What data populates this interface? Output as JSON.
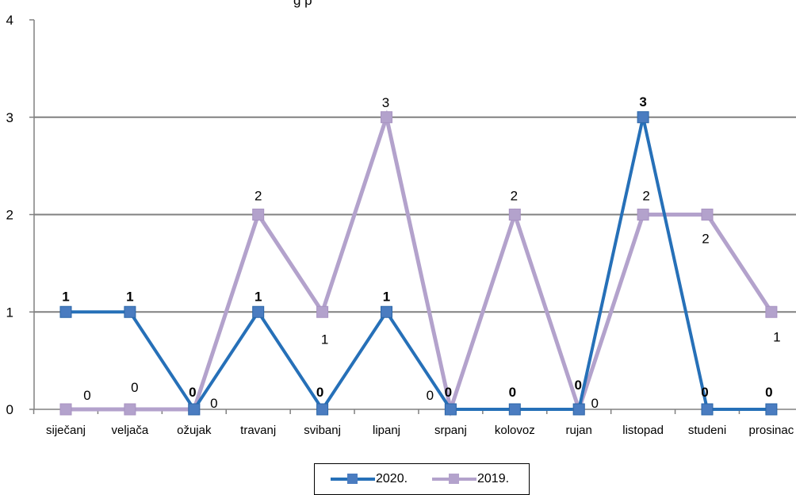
{
  "chart_data": {
    "type": "line",
    "title": "",
    "title_fragment": "g       p",
    "categories": [
      "siječanj",
      "veljača",
      "ožujak",
      "travanj",
      "svibanj",
      "lipanj",
      "srpanj",
      "kolovoz",
      "rujan",
      "listopad",
      "studeni",
      "prosinac"
    ],
    "ylim": [
      0,
      4
    ],
    "yticks": [
      "0",
      "1",
      "2",
      "3",
      "4"
    ],
    "grid": true,
    "legend_position": "bottom",
    "series": [
      {
        "name": "2020.",
        "color": "#2670b8",
        "marker_color": "#4a7cc0",
        "values": [
          1,
          1,
          0,
          1,
          0,
          1,
          0,
          0,
          0,
          3,
          0,
          0
        ],
        "data_labels": [
          "1",
          "1",
          "0",
          "1",
          "0",
          "1",
          "0",
          "0",
          "0",
          "3",
          "0",
          "0"
        ]
      },
      {
        "name": "2019.",
        "color": "#b3a2cc",
        "marker_color": "#b3a2cc",
        "values": [
          0,
          0,
          0,
          2,
          1,
          3,
          0,
          2,
          0,
          2,
          2,
          1
        ],
        "data_labels": [
          "0",
          "0",
          "0",
          "2",
          "1",
          "3",
          "0",
          "2",
          "0",
          "2",
          "2",
          "1"
        ]
      }
    ]
  }
}
